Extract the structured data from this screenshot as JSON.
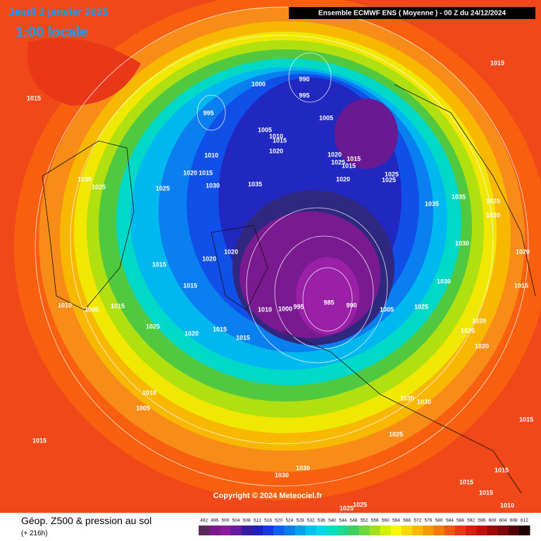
{
  "header": {
    "date": "Jeudi 2 janvier 2025",
    "time": "1:00 locale",
    "run": "Ensemble ECMWF ENS  ( Moyenne )  -  00 Z du 24/12/2024"
  },
  "copyright": "Copyright © 2024 Meteociel.fr",
  "footer": {
    "title": "Géop. Z500 & pression au sol",
    "lead": "(+ 216h)"
  },
  "legend": {
    "values": [
      492,
      496,
      500,
      504,
      508,
      512,
      516,
      520,
      524,
      528,
      532,
      536,
      540,
      544,
      548,
      552,
      556,
      560,
      564,
      568,
      572,
      576,
      580,
      584,
      588,
      592,
      596,
      600,
      604,
      608,
      612
    ],
    "colors": [
      "#5a2a5a",
      "#7a1a8a",
      "#8a1a9a",
      "#6a1aa0",
      "#3a1aa0",
      "#2020c0",
      "#1838e0",
      "#1060f0",
      "#0a80f0",
      "#00a0f0",
      "#00c0f0",
      "#00d8e8",
      "#00e0c0",
      "#20d890",
      "#40d060",
      "#70d840",
      "#a0e020",
      "#d0f000",
      "#f8f800",
      "#f8d800",
      "#f8b800",
      "#f89800",
      "#f87800",
      "#f05810",
      "#e83818",
      "#d82010",
      "#c01010",
      "#a00808",
      "#800808",
      "#500404",
      "#200000"
    ]
  },
  "isobars": [
    "990",
    "1000",
    "995",
    "995",
    "1005",
    "1005",
    "1010",
    "1015",
    "1020",
    "1010",
    "1020",
    "1015",
    "1025",
    "1015",
    "1020",
    "1015",
    "1025",
    "1020",
    "1025",
    "1030",
    "1035",
    "1025",
    "1030",
    "1025",
    "1015",
    "1015",
    "1035",
    "1035",
    "1030",
    "1025",
    "1020",
    "1020",
    "1015",
    "1015",
    "985",
    "990",
    "995",
    "1000",
    "1010",
    "1005",
    "1025",
    "1010",
    "1005",
    "1015",
    "1025",
    "1020",
    "1015",
    "1015",
    "1010",
    "1005",
    "1015",
    "1030",
    "1030",
    "1025",
    "1015",
    "1030",
    "1030",
    "1010",
    "1015",
    "1015",
    "1015",
    "1025",
    "1025",
    "1020",
    "1015",
    "1030",
    "1020",
    "1020",
    "1025",
    "1030"
  ]
}
